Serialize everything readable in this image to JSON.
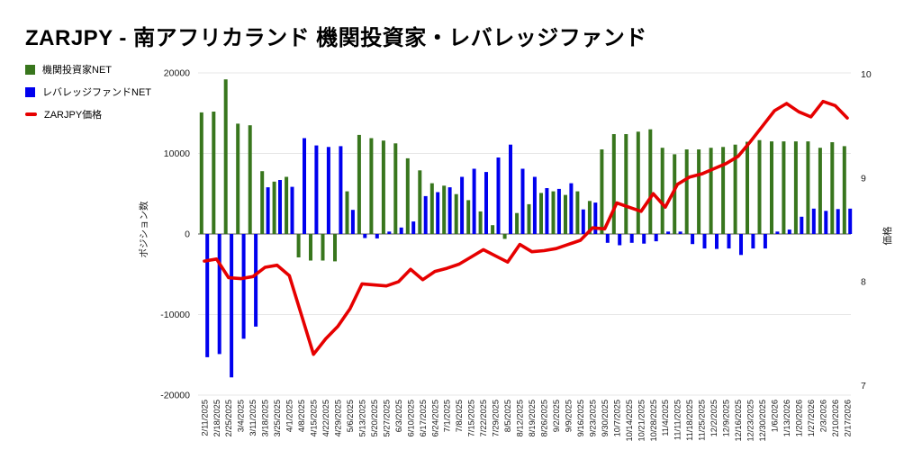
{
  "title": "ZARJPY - 南アフリカランド 機関投資家・レバレッジファンド",
  "legend": [
    {
      "label": "機関投資家NET",
      "color": "#38761d",
      "shape": "square"
    },
    {
      "label": "レバレッジファンドNET",
      "color": "#0000ee",
      "shape": "square"
    },
    {
      "label": "ZARJPY価格",
      "color": "#e60000",
      "shape": "dash"
    }
  ],
  "colors": {
    "grid": "#e7e7e7",
    "zero_axis": "#595959",
    "tick_text": "#1a1a1a"
  },
  "chart_data": {
    "type": "bar+line",
    "title": "ZARJPY - 南アフリカランド 機関投資家・レバレッジファンド",
    "left_axis": {
      "label": "ポジション数",
      "ticks": [
        20000,
        10000,
        0,
        -10000,
        -20000
      ],
      "range": [
        -20000,
        20000
      ]
    },
    "right_axis": {
      "label": "価格",
      "ticks": [
        10,
        9,
        8,
        7
      ],
      "range": [
        7,
        10
      ]
    },
    "grid": true,
    "legend_position": "top-left",
    "categories": [
      "2/11/2025",
      "2/18/2025",
      "2/25/2025",
      "3/4/2025",
      "3/11/2025",
      "3/18/2025",
      "3/25/2025",
      "4/1/2025",
      "4/8/2025",
      "4/15/2025",
      "4/22/2025",
      "4/29/2025",
      "5/6/2025",
      "5/13/2025",
      "5/20/2025",
      "5/27/2025",
      "6/3/2025",
      "6/10/2025",
      "6/17/2025",
      "6/24/2025",
      "7/1/2025",
      "7/8/2025",
      "7/15/2025",
      "7/22/2025",
      "7/29/2025",
      "8/5/2025",
      "8/12/2025",
      "8/19/2025",
      "8/26/2025",
      "9/2/2025",
      "9/9/2025",
      "9/16/2025",
      "9/23/2025",
      "9/30/2025",
      "10/7/2025",
      "10/14/2025",
      "10/21/2025",
      "10/28/2025",
      "11/4/2025",
      "11/11/2025",
      "11/18/2025",
      "11/25/2025",
      "12/2/2025",
      "12/9/2025",
      "12/16/2025",
      "12/23/2025",
      "12/30/2025",
      "1/6/2026",
      "1/13/2026",
      "1/20/2026",
      "1/27/2026",
      "2/3/2026",
      "2/10/2026",
      "2/17/2026"
    ],
    "series": [
      {
        "name": "機関投資家NET",
        "type": "bar",
        "axis": "left",
        "color": "#38761d",
        "values": [
          15100,
          15200,
          19200,
          13700,
          13500,
          7800,
          6500,
          7100,
          -2900,
          -3300,
          -3300,
          -3400,
          5300,
          12300,
          11900,
          11600,
          11250,
          9400,
          7900,
          6300,
          6000,
          4950,
          4200,
          2800,
          1100,
          -600,
          2600,
          3700,
          5100,
          5300,
          4850,
          5300,
          4100,
          10500,
          12400,
          12400,
          12700,
          13000,
          10700,
          9900,
          10500,
          10500,
          10700,
          10800,
          11100,
          11450,
          11650,
          11500,
          11500,
          11500,
          11500,
          10700,
          11400,
          10900
        ]
      },
      {
        "name": "レバレッジファンドNET",
        "type": "bar",
        "axis": "left",
        "color": "#0000ee",
        "values": [
          -15300,
          -14900,
          -17800,
          -13000,
          -11500,
          5800,
          6700,
          5860,
          11900,
          11000,
          10800,
          10900,
          3000,
          -500,
          -550,
          300,
          800,
          1550,
          4700,
          5200,
          5800,
          7100,
          8100,
          7700,
          9500,
          11100,
          8100,
          7100,
          5700,
          5600,
          6300,
          3050,
          3900,
          -1100,
          -1400,
          -1100,
          -1200,
          -900,
          300,
          300,
          -1250,
          -1800,
          -1850,
          -1800,
          -2600,
          -1800,
          -1800,
          300,
          550,
          2150,
          3150,
          2870,
          3100,
          3150
        ]
      },
      {
        "name": "ZARJPY価格",
        "type": "line",
        "axis": "right",
        "color": "#e60000",
        "values": [
          8.2,
          8.22,
          8.04,
          8.03,
          8.05,
          8.14,
          8.16,
          8.06,
          7.68,
          7.3,
          7.45,
          7.57,
          7.74,
          7.98,
          7.97,
          7.96,
          8.0,
          8.12,
          8.02,
          8.1,
          8.13,
          8.17,
          8.24,
          8.31,
          8.25,
          8.19,
          8.36,
          8.29,
          8.3,
          8.32,
          8.36,
          8.4,
          8.52,
          8.51,
          8.76,
          8.72,
          8.68,
          8.85,
          8.72,
          8.94,
          9.01,
          9.04,
          9.09,
          9.14,
          9.21,
          9.35,
          9.5,
          9.65,
          9.72,
          9.64,
          9.59,
          9.74,
          9.7,
          9.58
        ]
      }
    ]
  }
}
